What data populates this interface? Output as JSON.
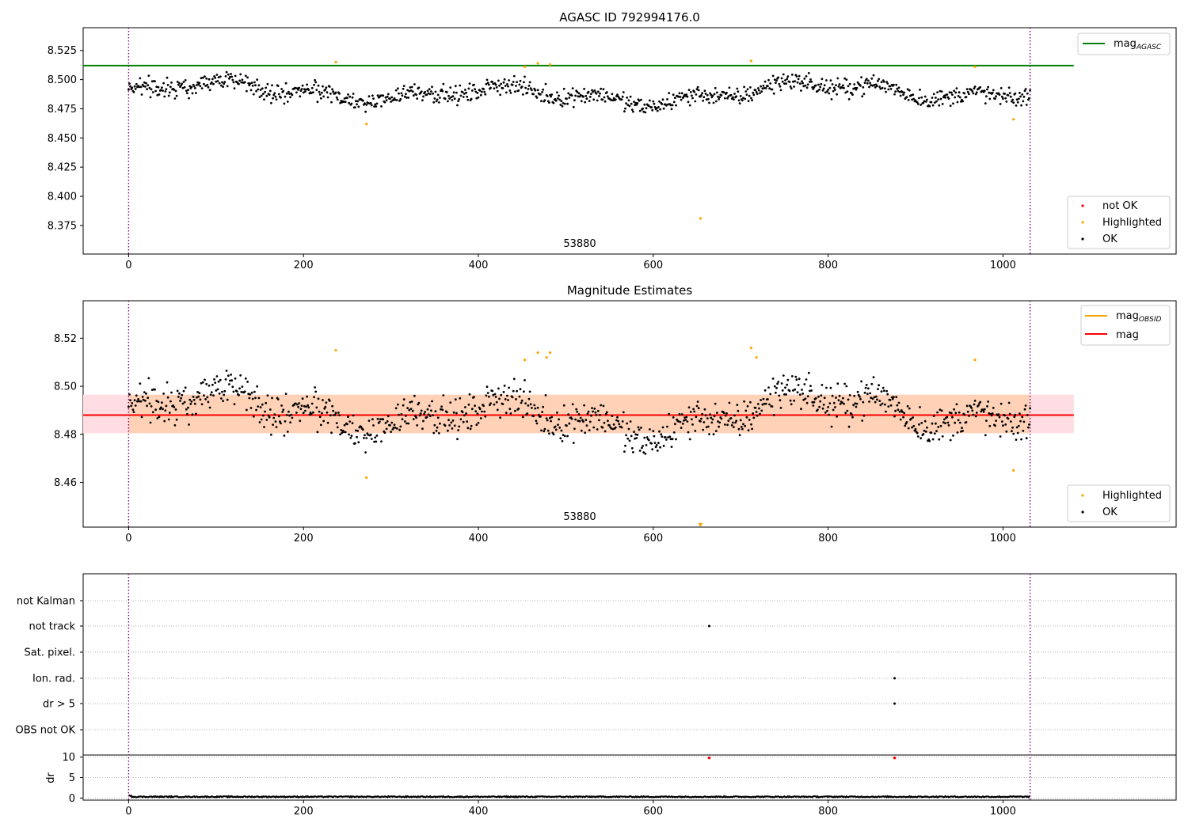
{
  "chart_data": [
    {
      "type": "scatter",
      "title": "AGASC ID 792994176.0",
      "x_range": [
        -52,
        1198
      ],
      "ylim": [
        8.3505,
        8.5445
      ],
      "xticks": [
        "0",
        "200",
        "400",
        "600",
        "800",
        "1000"
      ],
      "yticks": [
        "8.375",
        "8.400",
        "8.425",
        "8.450",
        "8.475",
        "8.500",
        "8.525"
      ],
      "obsid_label": "53880",
      "vlines": [
        0,
        1031
      ],
      "mag_agasc": 8.512,
      "highlighted": [
        [
          237,
          8.515
        ],
        [
          272,
          8.462
        ],
        [
          453,
          8.511
        ],
        [
          468,
          8.514
        ],
        [
          482,
          8.513
        ],
        [
          654,
          8.381
        ],
        [
          712,
          8.516
        ],
        [
          968,
          8.511
        ],
        [
          1012,
          8.466
        ]
      ],
      "ok_points": "synthetic-noise mag ≈ 8.473–8.505, x 0–1031",
      "legends": {
        "line": [
          {
            "label": "mag",
            "subscript": "AGASC",
            "color": "#008000"
          }
        ],
        "points": [
          {
            "label": "not OK",
            "color": "#ff0000"
          },
          {
            "label": "Highlighted",
            "color": "#ffa500"
          },
          {
            "label": "OK",
            "color": "#000000"
          }
        ]
      }
    },
    {
      "type": "scatter",
      "title": "Magnitude Estimates",
      "x_range": [
        -52,
        1198
      ],
      "ylim": [
        8.4414,
        8.5356
      ],
      "xticks": [
        "0",
        "200",
        "400",
        "600",
        "800",
        "1000"
      ],
      "yticks": [
        "8.46",
        "8.48",
        "8.50",
        "8.52"
      ],
      "obsid_label": "53880",
      "vlines": [
        0,
        1031
      ],
      "mag": 8.488,
      "mag_obsid": 8.488,
      "band_inner": [
        8.4805,
        8.4965
      ],
      "band_outer": [
        8.4805,
        8.4965
      ],
      "highlighted": [
        [
          237,
          8.515
        ],
        [
          272,
          8.462
        ],
        [
          453,
          8.511
        ],
        [
          468,
          8.514
        ],
        [
          478,
          8.512
        ],
        [
          482,
          8.514
        ],
        [
          654,
          8.442
        ],
        [
          712,
          8.516
        ],
        [
          718,
          8.512
        ],
        [
          968,
          8.511
        ],
        [
          1012,
          8.465
        ]
      ],
      "legends": {
        "line": [
          {
            "label": "mag",
            "subscript": "OBSID",
            "color": "#ffa500"
          },
          {
            "label": "mag",
            "subscript": "",
            "color": "#ff0000"
          }
        ],
        "points": [
          {
            "label": "Highlighted",
            "color": "#ffa500"
          },
          {
            "label": "OK",
            "color": "#000000"
          }
        ]
      }
    },
    {
      "type": "scatter",
      "title": "",
      "x_range": [
        -52,
        1198
      ],
      "xticks": [
        "0",
        "200",
        "400",
        "600",
        "800",
        "1000"
      ],
      "categories": [
        "not Kalman",
        "not track",
        "Sat. pixel.",
        "Ion. rad.",
        "dr > 5",
        "OBS not OK"
      ],
      "flag_points": [
        {
          "category": "not track",
          "x": 664
        },
        {
          "category": "Ion. rad.",
          "x": 876
        },
        {
          "category": "dr > 5",
          "x": 876
        }
      ],
      "dr": {
        "ylabel": "dr",
        "yticks": [
          "0",
          "5",
          "10"
        ],
        "ylim": [
          -0.5,
          10.5
        ],
        "outliers": [
          [
            664,
            9.8
          ],
          [
            876,
            9.8
          ]
        ]
      },
      "vlines": [
        0,
        1031
      ]
    }
  ],
  "colors": {
    "ok": "#000000",
    "highlighted": "#ffa500",
    "not_ok": "#ff0000",
    "mag_agasc": "#008000",
    "mag": "#ff0000",
    "mag_obsid": "#ffa500",
    "vline": "#800080",
    "band_outer": "#ffdde2",
    "band_inner": "#ffd2b8",
    "grid": "#b0b0b0"
  }
}
